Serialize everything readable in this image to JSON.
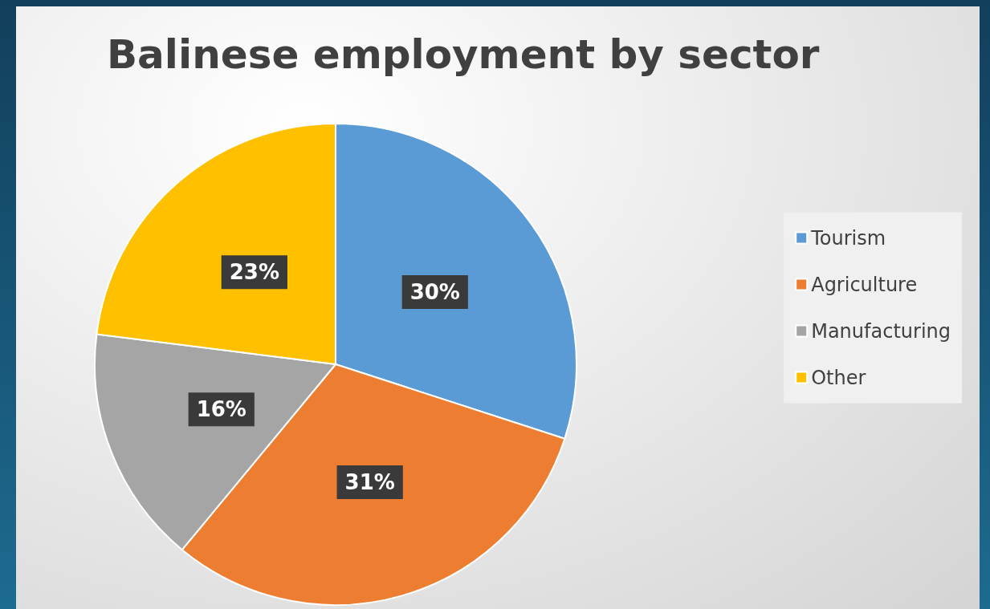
{
  "chart_data": {
    "type": "pie",
    "title": "Balinese employment by sector",
    "categories": [
      "Tourism",
      "Agriculture",
      "Manufacturing",
      "Other"
    ],
    "values": [
      30,
      31,
      16,
      23
    ],
    "colors": [
      "#5b9bd5",
      "#ed7d31",
      "#a5a5a5",
      "#ffc000"
    ],
    "value_labels": [
      "30%",
      "31%",
      "16%",
      "23%"
    ],
    "legend": "right"
  }
}
